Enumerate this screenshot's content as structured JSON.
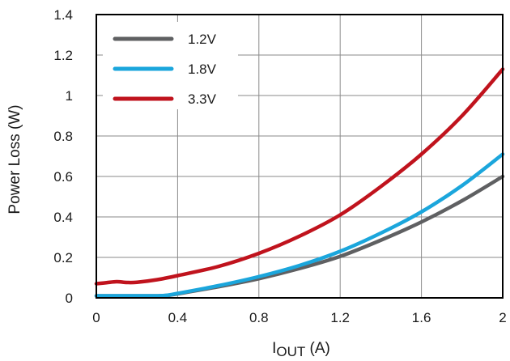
{
  "chart_data": {
    "type": "line",
    "xlabel_main": "I",
    "xlabel_sub": "OUT",
    "xlabel_unit": " (A)",
    "ylabel": "Power Loss (W)",
    "xlim": [
      0,
      2
    ],
    "ylim": [
      0,
      1.4
    ],
    "xticks": [
      0,
      0.4,
      0.8,
      1.2,
      1.6,
      2
    ],
    "xtick_labels": [
      "0",
      "0.4",
      "0.8",
      "1.2",
      "1.6",
      "2"
    ],
    "yticks": [
      0,
      0.2,
      0.4,
      0.6,
      0.8,
      1,
      1.2,
      1.4
    ],
    "ytick_labels": [
      "0",
      "0.2",
      "0.4",
      "0.6",
      "0.8",
      "1",
      "1.2",
      "1.4"
    ],
    "grid": true,
    "legend_position": "top-left",
    "series": [
      {
        "name": "1.2V",
        "color": "#5f6062",
        "x": [
          0,
          0.1,
          0.2,
          0.3,
          0.35,
          0.4,
          0.6,
          0.8,
          1.0,
          1.2,
          1.4,
          1.6,
          1.8,
          2.0
        ],
        "y": [
          0.01,
          0.01,
          0.01,
          0.01,
          0.012,
          0.02,
          0.055,
          0.095,
          0.145,
          0.205,
          0.285,
          0.375,
          0.48,
          0.6
        ]
      },
      {
        "name": "1.8V",
        "color": "#1ba6dc",
        "x": [
          0,
          0.1,
          0.2,
          0.3,
          0.35,
          0.4,
          0.6,
          0.8,
          1.0,
          1.2,
          1.4,
          1.6,
          1.8,
          2.0
        ],
        "y": [
          0.01,
          0.01,
          0.01,
          0.01,
          0.013,
          0.022,
          0.06,
          0.105,
          0.16,
          0.23,
          0.32,
          0.425,
          0.555,
          0.71
        ]
      },
      {
        "name": "3.3V",
        "color": "#c0131d",
        "x": [
          0,
          0.05,
          0.1,
          0.15,
          0.2,
          0.3,
          0.4,
          0.6,
          0.8,
          1.0,
          1.2,
          1.4,
          1.6,
          1.8,
          2.0
        ],
        "y": [
          0.07,
          0.075,
          0.08,
          0.076,
          0.077,
          0.09,
          0.11,
          0.155,
          0.22,
          0.305,
          0.41,
          0.55,
          0.71,
          0.9,
          1.13
        ]
      }
    ]
  }
}
